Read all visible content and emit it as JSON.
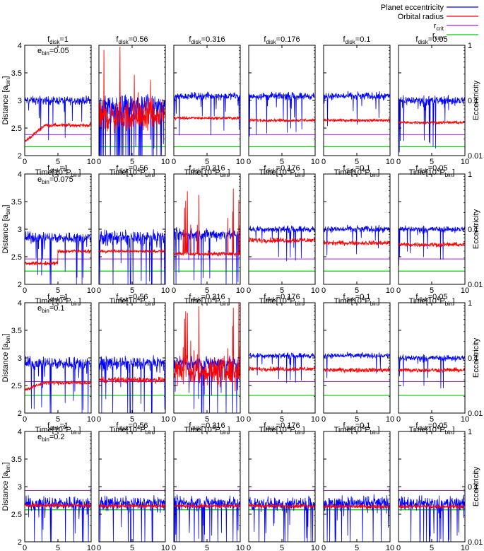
{
  "chart_data": {
    "type": "line",
    "legend": {
      "placement": "top-right",
      "entries": [
        {
          "name": "Planet eccentricity",
          "color": "#0000ff"
        },
        {
          "name": "Orbital radius",
          "color": "#ff0000"
        },
        {
          "name": "r",
          "sub": "crit",
          "color": "#a020f0"
        },
        {
          "name": "r",
          "sub": "cav",
          "color": "#00cc00"
        }
      ]
    },
    "xlabel": {
      "main": "Time[10",
      "sup": "4",
      "mid": "P",
      "sub": "bin",
      "end": "]"
    },
    "ylabel_left": {
      "main": "Distance [a",
      "sub": "bin",
      "end": "]"
    },
    "ylabel_right": "Eccentricity",
    "xlim": [
      0,
      10
    ],
    "xticks": [
      "0",
      "5",
      "10"
    ],
    "ylim_left": [
      2,
      4
    ],
    "yticks_left": [
      "2",
      "2.5",
      "3",
      "3.5",
      "4"
    ],
    "ylim_right_log": [
      0.01,
      1
    ],
    "yticks_right": [
      "0.01",
      "0.1",
      "1"
    ],
    "columns": [
      {
        "label": "f",
        "sub": "disk",
        "value": "=1"
      },
      {
        "label": "f",
        "sub": "disk",
        "value": "=0.56"
      },
      {
        "label": "f",
        "sub": "disk",
        "value": "=0.316"
      },
      {
        "label": "f",
        "sub": "disk",
        "value": "=0.176"
      },
      {
        "label": "f",
        "sub": "disk",
        "value": "=0.1"
      },
      {
        "label": "f",
        "sub": "disk",
        "value": "=0.05"
      }
    ],
    "rows": [
      {
        "annotation": {
          "label": "e",
          "sub": "bin",
          "value": "=0.05"
        },
        "r_crit": 2.38,
        "r_cav": 2.16,
        "panels": [
          {
            "radius_mean": 2.55,
            "radius_noise": 0.05,
            "radius_early": 2.25,
            "ecc_mean": 0.1,
            "ecc_spread": 0.9,
            "spikes": 0
          },
          {
            "radius_mean": 2.7,
            "radius_noise": 0.4,
            "radius_early": 2.7,
            "ecc_mean": 0.08,
            "ecc_spread": 2.6,
            "spikes": 1
          },
          {
            "radius_mean": 2.68,
            "radius_noise": 0.04,
            "radius_early": 2.68,
            "ecc_mean": 0.12,
            "ecc_spread": 0.8,
            "spikes": 0
          },
          {
            "radius_mean": 2.64,
            "radius_noise": 0.04,
            "radius_early": 2.64,
            "ecc_mean": 0.12,
            "ecc_spread": 0.8,
            "spikes": 0
          },
          {
            "radius_mean": 2.64,
            "radius_noise": 0.04,
            "radius_early": 2.64,
            "ecc_mean": 0.12,
            "ecc_spread": 0.8,
            "spikes": 0
          },
          {
            "radius_mean": 2.6,
            "radius_noise": 0.04,
            "radius_early": 2.6,
            "ecc_mean": 0.1,
            "ecc_spread": 1.0,
            "spikes": 0
          }
        ]
      },
      {
        "annotation": {
          "label": "e",
          "sub": "bin",
          "value": "=0.075"
        },
        "r_crit": 2.46,
        "r_cav": 2.24,
        "panels": [
          {
            "radius_mean": 2.6,
            "radius_noise": 0.05,
            "radius_early": 2.38,
            "ecc_mean": 0.07,
            "ecc_spread": 1.2,
            "spikes": 0
          },
          {
            "radius_mean": 2.6,
            "radius_noise": 0.04,
            "radius_early": 2.6,
            "ecc_mean": 0.07,
            "ecc_spread": 1.6,
            "spikes": 0
          },
          {
            "radius_mean": 2.55,
            "radius_noise": 0.05,
            "radius_early": 2.55,
            "ecc_mean": 0.08,
            "ecc_spread": 1.3,
            "spikes": 1
          },
          {
            "radius_mean": 2.8,
            "radius_noise": 0.07,
            "radius_early": 2.8,
            "ecc_mean": 0.1,
            "ecc_spread": 0.7,
            "spikes": 0
          },
          {
            "radius_mean": 2.75,
            "radius_noise": 0.06,
            "radius_early": 2.75,
            "ecc_mean": 0.1,
            "ecc_spread": 0.7,
            "spikes": 0
          },
          {
            "radius_mean": 2.72,
            "radius_noise": 0.06,
            "radius_early": 2.72,
            "ecc_mean": 0.1,
            "ecc_spread": 0.7,
            "spikes": 0
          }
        ]
      },
      {
        "annotation": {
          "label": "e",
          "sub": "bin",
          "value": "=0.1"
        },
        "r_crit": 2.57,
        "r_cav": 2.32,
        "panels": [
          {
            "radius_mean": 2.55,
            "radius_noise": 0.05,
            "radius_early": 2.42,
            "ecc_mean": 0.08,
            "ecc_spread": 1.4,
            "spikes": 0
          },
          {
            "radius_mean": 2.6,
            "radius_noise": 0.08,
            "radius_early": 2.6,
            "ecc_mean": 0.08,
            "ecc_spread": 1.5,
            "spikes": 0
          },
          {
            "radius_mean": 2.75,
            "radius_noise": 0.4,
            "radius_early": 2.75,
            "ecc_mean": 0.08,
            "ecc_spread": 1.5,
            "spikes": 1
          },
          {
            "radius_mean": 2.8,
            "radius_noise": 0.06,
            "radius_early": 2.8,
            "ecc_mean": 0.11,
            "ecc_spread": 0.6,
            "spikes": 0
          },
          {
            "radius_mean": 2.78,
            "radius_noise": 0.06,
            "radius_early": 2.78,
            "ecc_mean": 0.11,
            "ecc_spread": 0.6,
            "spikes": 0
          },
          {
            "radius_mean": 2.78,
            "radius_noise": 0.06,
            "radius_early": 2.78,
            "ecc_mean": 0.1,
            "ecc_spread": 0.7,
            "spikes": 0
          }
        ]
      },
      {
        "annotation": {
          "label": "e",
          "sub": "bin",
          "value": "=0.2"
        },
        "r_crit": 2.93,
        "r_cav": 2.58,
        "panels": [
          {
            "radius_mean": 2.66,
            "radius_noise": 0.05,
            "radius_early": 2.66,
            "ecc_mean": 0.05,
            "ecc_spread": 1.5,
            "spikes": 0
          },
          {
            "radius_mean": 2.65,
            "radius_noise": 0.05,
            "radius_early": 2.65,
            "ecc_mean": 0.05,
            "ecc_spread": 1.5,
            "spikes": 0
          },
          {
            "radius_mean": 2.65,
            "radius_noise": 0.05,
            "radius_early": 2.65,
            "ecc_mean": 0.05,
            "ecc_spread": 1.5,
            "spikes": 0
          },
          {
            "radius_mean": 2.65,
            "radius_noise": 0.05,
            "radius_early": 2.65,
            "ecc_mean": 0.05,
            "ecc_spread": 1.5,
            "spikes": 0
          },
          {
            "radius_mean": 2.64,
            "radius_noise": 0.05,
            "radius_early": 2.64,
            "ecc_mean": 0.05,
            "ecc_spread": 1.6,
            "spikes": 0
          },
          {
            "radius_mean": 2.64,
            "radius_noise": 0.05,
            "radius_early": 2.64,
            "ecc_mean": 0.05,
            "ecc_spread": 1.5,
            "spikes": 0
          }
        ]
      }
    ]
  }
}
